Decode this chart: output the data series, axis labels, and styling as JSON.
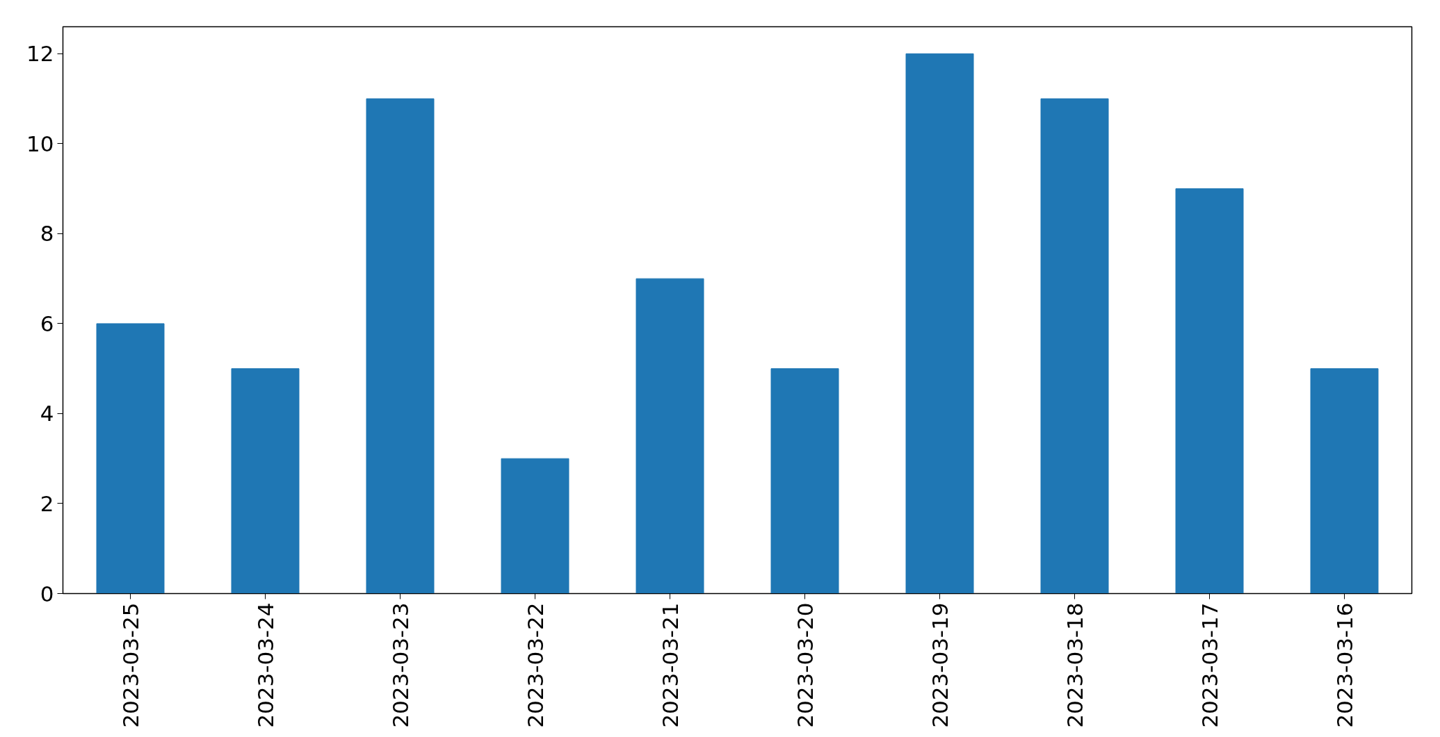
{
  "chart_data": {
    "type": "bar",
    "categories": [
      "2023-03-25",
      "2023-03-24",
      "2023-03-23",
      "2023-03-22",
      "2023-03-21",
      "2023-03-20",
      "2023-03-19",
      "2023-03-18",
      "2023-03-17",
      "2023-03-16"
    ],
    "values": [
      6,
      5,
      11,
      3,
      7,
      5,
      12,
      11,
      9,
      5
    ],
    "color": "#1f77b4",
    "ylim": [
      0,
      12.6
    ],
    "yticks": [
      0,
      2,
      4,
      6,
      8,
      10,
      12
    ],
    "grid": false
  }
}
